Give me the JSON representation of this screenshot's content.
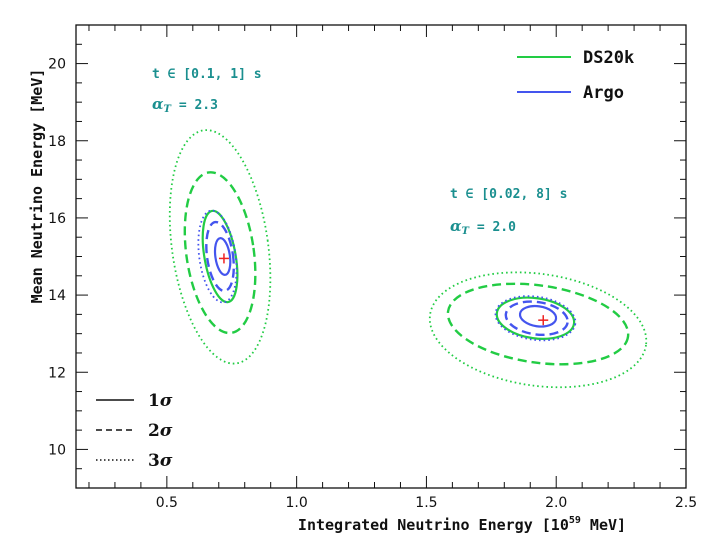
{
  "chart_data": {
    "type": "contour",
    "xlabel": "Integrated Neutrino Energy [10",
    "xlabel_sup": "59",
    "xlabel_suffix": " MeV]",
    "ylabel": "Mean Neutrino Energy [MeV]",
    "xlim": [
      0.15,
      2.5
    ],
    "ylim": [
      9.0,
      21.0
    ],
    "xticks": [
      0.5,
      1.0,
      1.5,
      2.0,
      2.5
    ],
    "xtick_labels": [
      "0.5",
      "1.0",
      "1.5",
      "2.0",
      "2.5"
    ],
    "yticks": [
      10,
      12,
      14,
      16,
      18,
      20
    ],
    "ytick_labels": [
      "10",
      "12",
      "14",
      "16",
      "18",
      "20"
    ],
    "grid": false,
    "legend": {
      "placement": "top-right",
      "entries": [
        {
          "label": "DS20k",
          "color": "#22cc44"
        },
        {
          "label": "Argo",
          "color": "#4455ee"
        }
      ]
    },
    "sigma_legend": {
      "placement": "bottom-left",
      "entries": [
        {
          "label": "1",
          "style": "solid"
        },
        {
          "label": "2",
          "style": "dashed"
        },
        {
          "label": "3",
          "style": "dotted"
        }
      ],
      "symbol": "σ"
    },
    "annotations": [
      {
        "time_text": "t ∈ [0.1, 1] s",
        "alpha_sym": "α",
        "alpha_sub": "T",
        "alpha_text": " = 2.3"
      },
      {
        "time_text": "t ∈ [0.02, 8] s",
        "alpha_sym": "α",
        "alpha_sub": "T",
        "alpha_text": " = 2.0"
      }
    ],
    "markers": [
      {
        "x": 0.72,
        "y": 14.95,
        "color": "#ee2222"
      },
      {
        "x": 1.95,
        "y": 13.35,
        "color": "#ee2222"
      }
    ],
    "contours": [
      {
        "series": "DS20k",
        "sigma": 1,
        "cx": 0.705,
        "cy": 15.0,
        "rx": 0.06,
        "ry": 1.2,
        "angle": -10,
        "color": "#22cc44"
      },
      {
        "series": "DS20k",
        "sigma": 2,
        "cx": 0.705,
        "cy": 15.1,
        "rx": 0.13,
        "ry": 2.1,
        "angle": -8,
        "color": "#22cc44"
      },
      {
        "series": "DS20k",
        "sigma": 3,
        "cx": 0.705,
        "cy": 15.25,
        "rx": 0.185,
        "ry": 3.05,
        "angle": -8,
        "color": "#22cc44"
      },
      {
        "series": "Argo",
        "sigma": 1,
        "cx": 0.715,
        "cy": 15.0,
        "rx": 0.028,
        "ry": 0.48,
        "angle": -8,
        "color": "#4455ee"
      },
      {
        "series": "Argo",
        "sigma": 2,
        "cx": 0.705,
        "cy": 15.0,
        "rx": 0.05,
        "ry": 0.9,
        "angle": -8,
        "color": "#4455ee"
      },
      {
        "series": "Argo",
        "sigma": 3,
        "cx": 0.695,
        "cy": 15.0,
        "rx": 0.07,
        "ry": 1.2,
        "angle": -8,
        "color": "#4455ee"
      },
      {
        "series": "DS20k",
        "sigma": 1,
        "cx": 1.92,
        "cy": 13.4,
        "rx": 0.15,
        "ry": 0.52,
        "angle": 8,
        "color": "#22cc44"
      },
      {
        "series": "DS20k",
        "sigma": 2,
        "cx": 1.93,
        "cy": 13.25,
        "rx": 0.35,
        "ry": 1.0,
        "angle": 8,
        "color": "#22cc44"
      },
      {
        "series": "DS20k",
        "sigma": 3,
        "cx": 1.93,
        "cy": 13.1,
        "rx": 0.42,
        "ry": 1.45,
        "angle": 8,
        "color": "#22cc44"
      },
      {
        "series": "Argo",
        "sigma": 1,
        "cx": 1.93,
        "cy": 13.45,
        "rx": 0.07,
        "ry": 0.26,
        "angle": 8,
        "color": "#4455ee"
      },
      {
        "series": "Argo",
        "sigma": 2,
        "cx": 1.925,
        "cy": 13.4,
        "rx": 0.12,
        "ry": 0.42,
        "angle": 8,
        "color": "#4455ee"
      },
      {
        "series": "Argo",
        "sigma": 3,
        "cx": 1.92,
        "cy": 13.4,
        "rx": 0.155,
        "ry": 0.56,
        "angle": 8,
        "color": "#4455ee"
      }
    ]
  }
}
